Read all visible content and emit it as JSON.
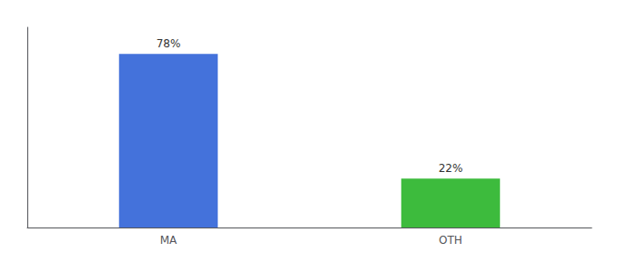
{
  "chart_data": {
    "type": "bar",
    "categories": [
      "MA",
      "OTH"
    ],
    "values": [
      78,
      22
    ],
    "value_labels": [
      "78%",
      "22%"
    ],
    "data_labels": true,
    "colors": [
      "#4472db",
      "#3dbb3d"
    ],
    "ylim": [
      0,
      90
    ],
    "tick_labels": "x",
    "grid": false
  }
}
